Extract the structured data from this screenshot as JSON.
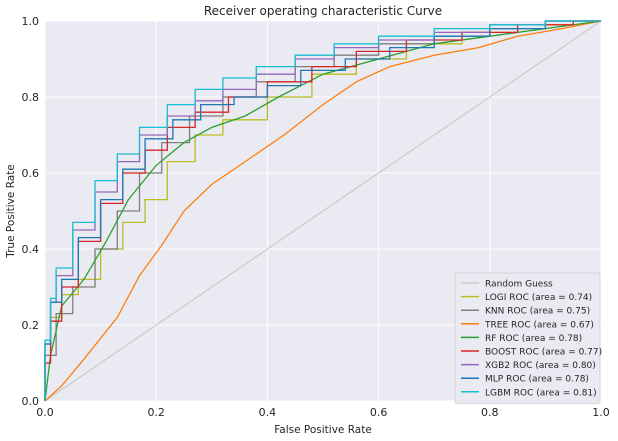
{
  "chart_data": {
    "type": "line",
    "title": "Receiver operating characteristic Curve",
    "xlabel": "False Positive Rate",
    "ylabel": "True Positive Rate",
    "xlim": [
      0,
      1
    ],
    "ylim": [
      0,
      1
    ],
    "xticks": [
      "0.0",
      "0.2",
      "0.4",
      "0.6",
      "0.8",
      "1.0"
    ],
    "yticks": [
      "0.0",
      "0.2",
      "0.4",
      "0.6",
      "0.8",
      "1.0"
    ],
    "grid": true,
    "legend_position": "bottom-right",
    "series": [
      {
        "name": "Random Guess",
        "color": "#cccccc",
        "step": false,
        "points": [
          [
            0,
            0
          ],
          [
            1,
            1
          ]
        ]
      },
      {
        "name": "LOGI ROC  (area = 0.74)",
        "color": "#bcbd22",
        "step": true,
        "points": [
          [
            0,
            0
          ],
          [
            0.01,
            0.12
          ],
          [
            0.03,
            0.22
          ],
          [
            0.06,
            0.28
          ],
          [
            0.1,
            0.32
          ],
          [
            0.14,
            0.4
          ],
          [
            0.18,
            0.47
          ],
          [
            0.22,
            0.53
          ],
          [
            0.27,
            0.63
          ],
          [
            0.32,
            0.7
          ],
          [
            0.4,
            0.74
          ],
          [
            0.48,
            0.8
          ],
          [
            0.56,
            0.86
          ],
          [
            0.65,
            0.9
          ],
          [
            0.75,
            0.94
          ],
          [
            0.85,
            0.97
          ],
          [
            0.95,
            0.99
          ],
          [
            1,
            1
          ]
        ]
      },
      {
        "name": "KNN ROC  (area = 0.75)",
        "color": "#7f7f7f",
        "step": true,
        "points": [
          [
            0,
            0
          ],
          [
            0.02,
            0.12
          ],
          [
            0.05,
            0.23
          ],
          [
            0.09,
            0.3
          ],
          [
            0.13,
            0.4
          ],
          [
            0.17,
            0.5
          ],
          [
            0.21,
            0.6
          ],
          [
            0.26,
            0.68
          ],
          [
            0.32,
            0.75
          ],
          [
            0.38,
            0.8
          ],
          [
            0.45,
            0.84
          ],
          [
            0.52,
            0.88
          ],
          [
            0.6,
            0.91
          ],
          [
            0.7,
            0.94
          ],
          [
            0.8,
            0.96
          ],
          [
            0.9,
            0.98
          ],
          [
            1,
            1
          ]
        ]
      },
      {
        "name": "TREE ROC  (area = 0.67)",
        "color": "#ff7f0e",
        "step": false,
        "points": [
          [
            0,
            0
          ],
          [
            0.03,
            0.04
          ],
          [
            0.07,
            0.11
          ],
          [
            0.13,
            0.22
          ],
          [
            0.17,
            0.33
          ],
          [
            0.21,
            0.41
          ],
          [
            0.25,
            0.5
          ],
          [
            0.3,
            0.57
          ],
          [
            0.36,
            0.63
          ],
          [
            0.43,
            0.7
          ],
          [
            0.5,
            0.78
          ],
          [
            0.56,
            0.84
          ],
          [
            0.62,
            0.88
          ],
          [
            0.7,
            0.91
          ],
          [
            0.78,
            0.93
          ],
          [
            0.85,
            0.96
          ],
          [
            0.93,
            0.98
          ],
          [
            1,
            1
          ]
        ]
      },
      {
        "name": "RF ROC  (area = 0.78)",
        "color": "#2ca02c",
        "step": false,
        "points": [
          [
            0,
            0
          ],
          [
            0.01,
            0.12
          ],
          [
            0.03,
            0.25
          ],
          [
            0.07,
            0.32
          ],
          [
            0.11,
            0.42
          ],
          [
            0.15,
            0.53
          ],
          [
            0.2,
            0.62
          ],
          [
            0.25,
            0.68
          ],
          [
            0.3,
            0.72
          ],
          [
            0.36,
            0.75
          ],
          [
            0.42,
            0.8
          ],
          [
            0.5,
            0.86
          ],
          [
            0.6,
            0.9
          ],
          [
            0.7,
            0.94
          ],
          [
            0.8,
            0.96
          ],
          [
            0.9,
            0.98
          ],
          [
            1,
            1
          ]
        ]
      },
      {
        "name": "BOOST ROC  (area = 0.77)",
        "color": "#d62728",
        "step": true,
        "points": [
          [
            0,
            0
          ],
          [
            0.01,
            0.1
          ],
          [
            0.03,
            0.21
          ],
          [
            0.06,
            0.3
          ],
          [
            0.1,
            0.42
          ],
          [
            0.14,
            0.52
          ],
          [
            0.18,
            0.6
          ],
          [
            0.22,
            0.66
          ],
          [
            0.27,
            0.72
          ],
          [
            0.33,
            0.76
          ],
          [
            0.4,
            0.8
          ],
          [
            0.48,
            0.84
          ],
          [
            0.56,
            0.88
          ],
          [
            0.65,
            0.92
          ],
          [
            0.75,
            0.95
          ],
          [
            0.85,
            0.97
          ],
          [
            0.95,
            0.99
          ],
          [
            1,
            1
          ]
        ]
      },
      {
        "name": "XGB2 ROC  (area = 0.80)",
        "color": "#9467bd",
        "step": true,
        "points": [
          [
            0,
            0
          ],
          [
            0.01,
            0.15
          ],
          [
            0.02,
            0.26
          ],
          [
            0.05,
            0.33
          ],
          [
            0.09,
            0.45
          ],
          [
            0.13,
            0.55
          ],
          [
            0.17,
            0.63
          ],
          [
            0.22,
            0.7
          ],
          [
            0.27,
            0.75
          ],
          [
            0.32,
            0.79
          ],
          [
            0.38,
            0.82
          ],
          [
            0.45,
            0.86
          ],
          [
            0.52,
            0.9
          ],
          [
            0.6,
            0.93
          ],
          [
            0.7,
            0.95
          ],
          [
            0.8,
            0.97
          ],
          [
            0.9,
            0.99
          ],
          [
            1,
            1
          ]
        ]
      },
      {
        "name": "MLP ROC  (area = 0.78)",
        "color": "#1f77b4",
        "step": true,
        "points": [
          [
            0,
            0
          ],
          [
            0.01,
            0.15
          ],
          [
            0.03,
            0.26
          ],
          [
            0.06,
            0.32
          ],
          [
            0.1,
            0.43
          ],
          [
            0.14,
            0.53
          ],
          [
            0.18,
            0.61
          ],
          [
            0.23,
            0.69
          ],
          [
            0.28,
            0.74
          ],
          [
            0.34,
            0.78
          ],
          [
            0.4,
            0.8
          ],
          [
            0.46,
            0.83
          ],
          [
            0.54,
            0.87
          ],
          [
            0.62,
            0.9
          ],
          [
            0.7,
            0.93
          ],
          [
            0.8,
            0.96
          ],
          [
            0.9,
            0.98
          ],
          [
            1,
            1
          ]
        ]
      },
      {
        "name": "LGBM ROC  (area = 0.81)",
        "color": "#17becf",
        "step": true,
        "points": [
          [
            0,
            0
          ],
          [
            0.01,
            0.16
          ],
          [
            0.02,
            0.27
          ],
          [
            0.05,
            0.35
          ],
          [
            0.09,
            0.47
          ],
          [
            0.13,
            0.58
          ],
          [
            0.17,
            0.65
          ],
          [
            0.22,
            0.72
          ],
          [
            0.27,
            0.78
          ],
          [
            0.32,
            0.82
          ],
          [
            0.38,
            0.85
          ],
          [
            0.45,
            0.88
          ],
          [
            0.52,
            0.91
          ],
          [
            0.6,
            0.94
          ],
          [
            0.7,
            0.96
          ],
          [
            0.8,
            0.98
          ],
          [
            0.9,
            0.99
          ],
          [
            1,
            1
          ]
        ]
      }
    ]
  }
}
